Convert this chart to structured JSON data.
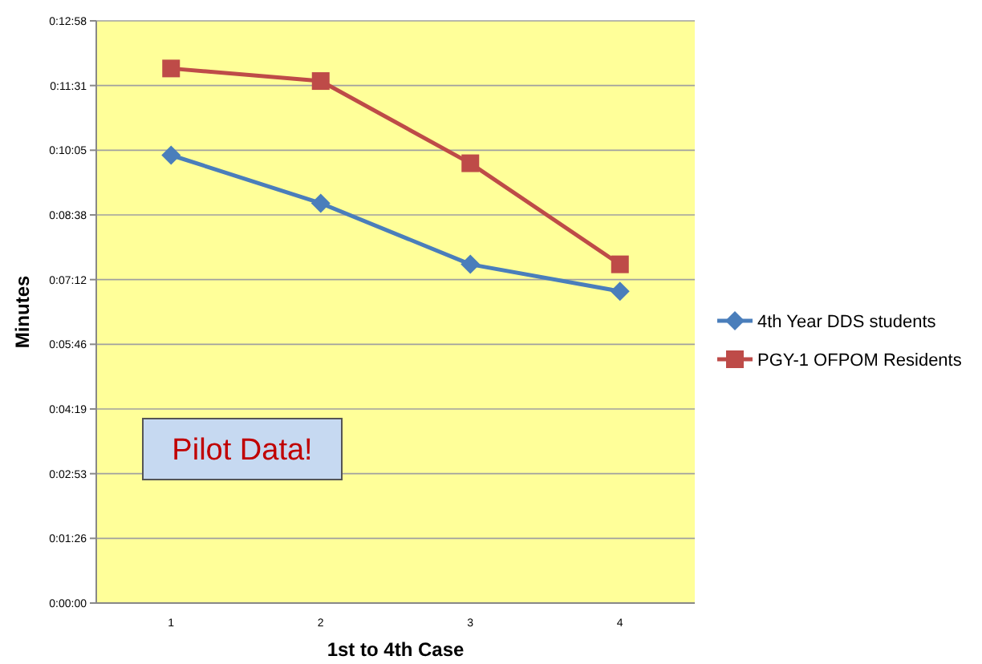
{
  "chart_data": {
    "type": "line",
    "xlabel": "1st to 4th Case",
    "ylabel": "Minutes",
    "categories": [
      "1",
      "2",
      "3",
      "4"
    ],
    "series": [
      {
        "name": "4th Year DDS students",
        "color": "#4a7ebb",
        "marker": "diamond",
        "values": [
          9.97,
          8.9,
          7.54,
          6.94
        ]
      },
      {
        "name": "PGY-1 OFPOM Residents",
        "color": "#be4b48",
        "marker": "square",
        "values": [
          11.9,
          11.62,
          9.79,
          7.54
        ]
      }
    ],
    "ylim": [
      0,
      12.96
    ],
    "yticks": [
      {
        "value": 0,
        "label": "0:00:00"
      },
      {
        "value": 1.44,
        "label": "0:01:26"
      },
      {
        "value": 2.88,
        "label": "0:02:53"
      },
      {
        "value": 4.32,
        "label": "0:04:19"
      },
      {
        "value": 5.76,
        "label": "0:05:46"
      },
      {
        "value": 7.2,
        "label": "0:07:12"
      },
      {
        "value": 8.64,
        "label": "0:08:38"
      },
      {
        "value": 10.08,
        "label": "0:10:05"
      },
      {
        "value": 11.52,
        "label": "0:11:31"
      },
      {
        "value": 12.96,
        "label": "0:12:58"
      }
    ],
    "grid": "y",
    "legend": "right",
    "annotations": [
      "Pilot Data!"
    ]
  }
}
